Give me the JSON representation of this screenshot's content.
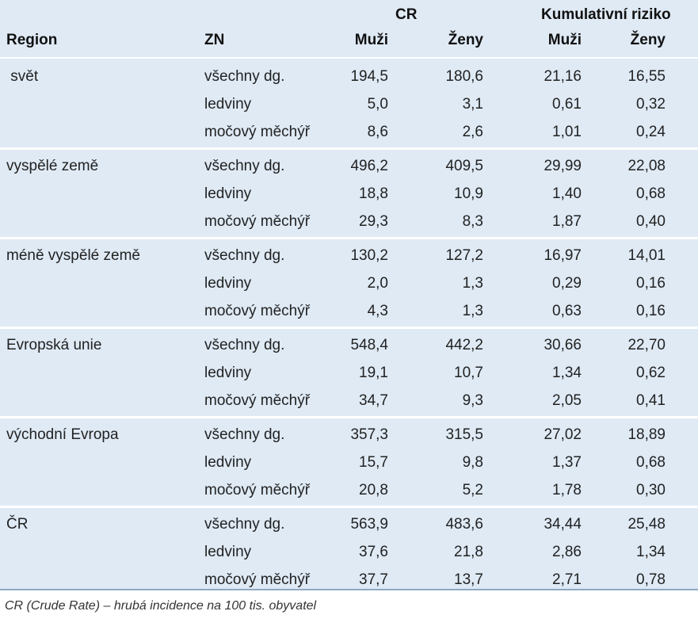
{
  "header": {
    "group_cr": "CR",
    "group_risk": "Kumulativní riziko",
    "col_region": "Region",
    "col_zn": "ZN",
    "cr_men": "Muži",
    "cr_women": "Ženy",
    "risk_men": "Muži",
    "risk_women": "Ženy"
  },
  "groups": [
    {
      "region": " svět",
      "rows": [
        {
          "zn": "všechny dg.",
          "cr_m": "194,5",
          "cr_z": "180,6",
          "r_m": "21,16",
          "r_z": "16,55"
        },
        {
          "zn": "ledviny",
          "cr_m": "5,0",
          "cr_z": "3,1",
          "r_m": "0,61",
          "r_z": "0,32"
        },
        {
          "zn": "močový měchýř",
          "cr_m": "8,6",
          "cr_z": "2,6",
          "r_m": "1,01",
          "r_z": "0,24"
        }
      ]
    },
    {
      "region": "vyspělé země",
      "rows": [
        {
          "zn": "všechny dg.",
          "cr_m": "496,2",
          "cr_z": "409,5",
          "r_m": "29,99",
          "r_z": "22,08"
        },
        {
          "zn": "ledviny",
          "cr_m": "18,8",
          "cr_z": "10,9",
          "r_m": "1,40",
          "r_z": "0,68"
        },
        {
          "zn": "močový měchýř",
          "cr_m": "29,3",
          "cr_z": "8,3",
          "r_m": "1,87",
          "r_z": "0,40"
        }
      ]
    },
    {
      "region": "méně vyspělé země",
      "rows": [
        {
          "zn": "všechny dg.",
          "cr_m": "130,2",
          "cr_z": "127,2",
          "r_m": "16,97",
          "r_z": "14,01"
        },
        {
          "zn": "ledviny",
          "cr_m": "2,0",
          "cr_z": "1,3",
          "r_m": "0,29",
          "r_z": "0,16"
        },
        {
          "zn": "močový měchýř",
          "cr_m": "4,3",
          "cr_z": "1,3",
          "r_m": "0,63",
          "r_z": "0,16"
        }
      ]
    },
    {
      "region": "Evropská unie",
      "rows": [
        {
          "zn": "všechny dg.",
          "cr_m": "548,4",
          "cr_z": "442,2",
          "r_m": "30,66",
          "r_z": "22,70"
        },
        {
          "zn": "ledviny",
          "cr_m": "19,1",
          "cr_z": "10,7",
          "r_m": "1,34",
          "r_z": "0,62"
        },
        {
          "zn": "močový měchýř",
          "cr_m": "34,7",
          "cr_z": "9,3",
          "r_m": "2,05",
          "r_z": "0,41"
        }
      ]
    },
    {
      "region": "východní Evropa",
      "rows": [
        {
          "zn": "všechny dg.",
          "cr_m": "357,3",
          "cr_z": "315,5",
          "r_m": "27,02",
          "r_z": "18,89"
        },
        {
          "zn": "ledviny",
          "cr_m": "15,7",
          "cr_z": "9,8",
          "r_m": "1,37",
          "r_z": "0,68"
        },
        {
          "zn": "močový měchýř",
          "cr_m": "20,8",
          "cr_z": "5,2",
          "r_m": "1,78",
          "r_z": "0,30"
        }
      ]
    },
    {
      "region": "ČR",
      "rows": [
        {
          "zn": "všechny dg.",
          "cr_m": "563,9",
          "cr_z": "483,6",
          "r_m": "34,44",
          "r_z": "25,48"
        },
        {
          "zn": "ledviny",
          "cr_m": "37,6",
          "cr_z": "21,8",
          "r_m": "2,86",
          "r_z": "1,34"
        },
        {
          "zn": "močový měchýř",
          "cr_m": "37,7",
          "cr_z": "13,7",
          "r_m": "2,71",
          "r_z": "0,78"
        }
      ]
    }
  ],
  "footnote": "CR (Crude Rate) – hrubá incidence na 100 tis. obyvatel"
}
